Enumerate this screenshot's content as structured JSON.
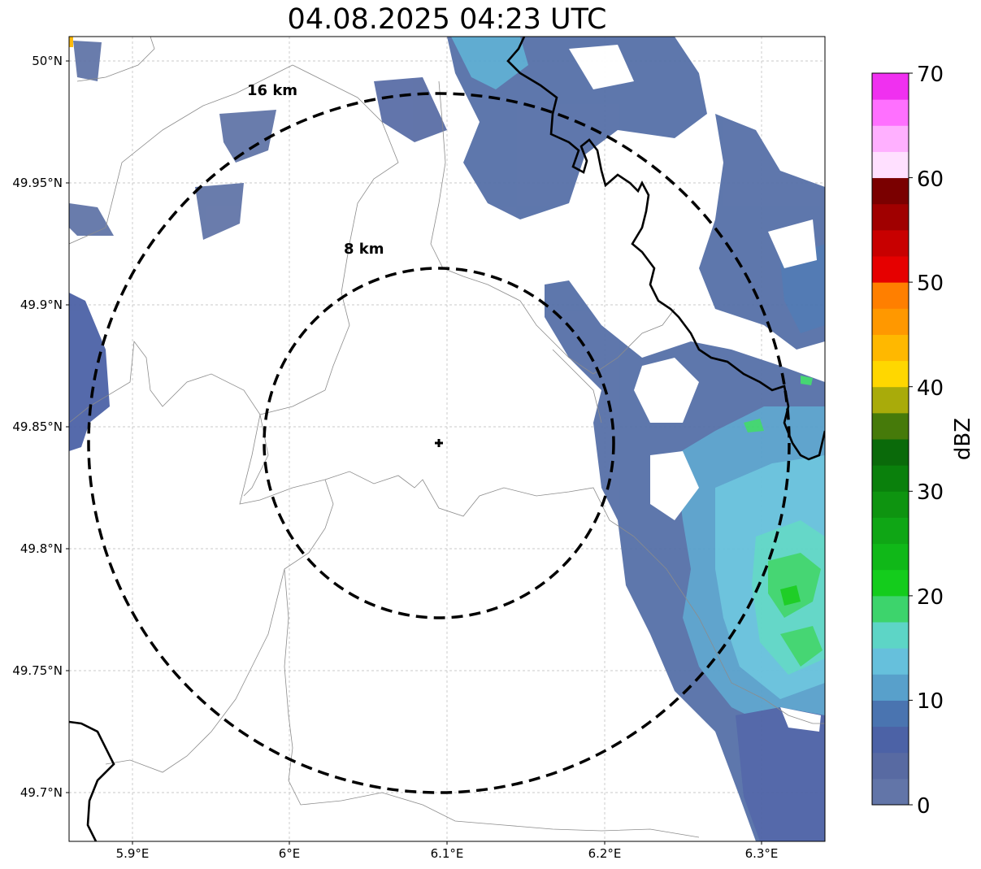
{
  "title": "04.08.2025 04:23 UTC",
  "colorbar": {
    "label": "dBZ",
    "ticks": [
      "0",
      "10",
      "20",
      "30",
      "40",
      "50",
      "60",
      "70"
    ],
    "colors": [
      "#6275a8",
      "#586aa2",
      "#4c62a6",
      "#4a74b0",
      "#58a0cb",
      "#66c0dc",
      "#5dd5c6",
      "#3dd46c",
      "#14cc1c",
      "#10b818",
      "#0fa615",
      "#0e9410",
      "#0a800c",
      "#0a6a0a",
      "#467a0a",
      "#a9ab0a",
      "#ffd700",
      "#ffb800",
      "#ff9800",
      "#ff7f00",
      "#e60000",
      "#c80000",
      "#a00000",
      "#7a0000",
      "#ffe0ff",
      "#ffb0ff",
      "#ff70ff",
      "#f030f0"
    ]
  },
  "axes": {
    "x_ticks": [
      "5.9°E",
      "6°E",
      "6.1°E",
      "6.2°E",
      "6.3°E"
    ],
    "y_ticks": [
      "50°N",
      "49.95°N",
      "49.9°N",
      "49.85°N",
      "49.8°N",
      "49.75°N",
      "49.7°N"
    ]
  },
  "rings": [
    {
      "label": "16 km"
    },
    {
      "label": "8 km"
    }
  ],
  "radar_site": {
    "lon": 6.095,
    "lat": 49.843
  },
  "reflectivity": {
    "dominant_range_dbz": [
      0,
      25
    ],
    "region": "east and north-east of radar site"
  }
}
